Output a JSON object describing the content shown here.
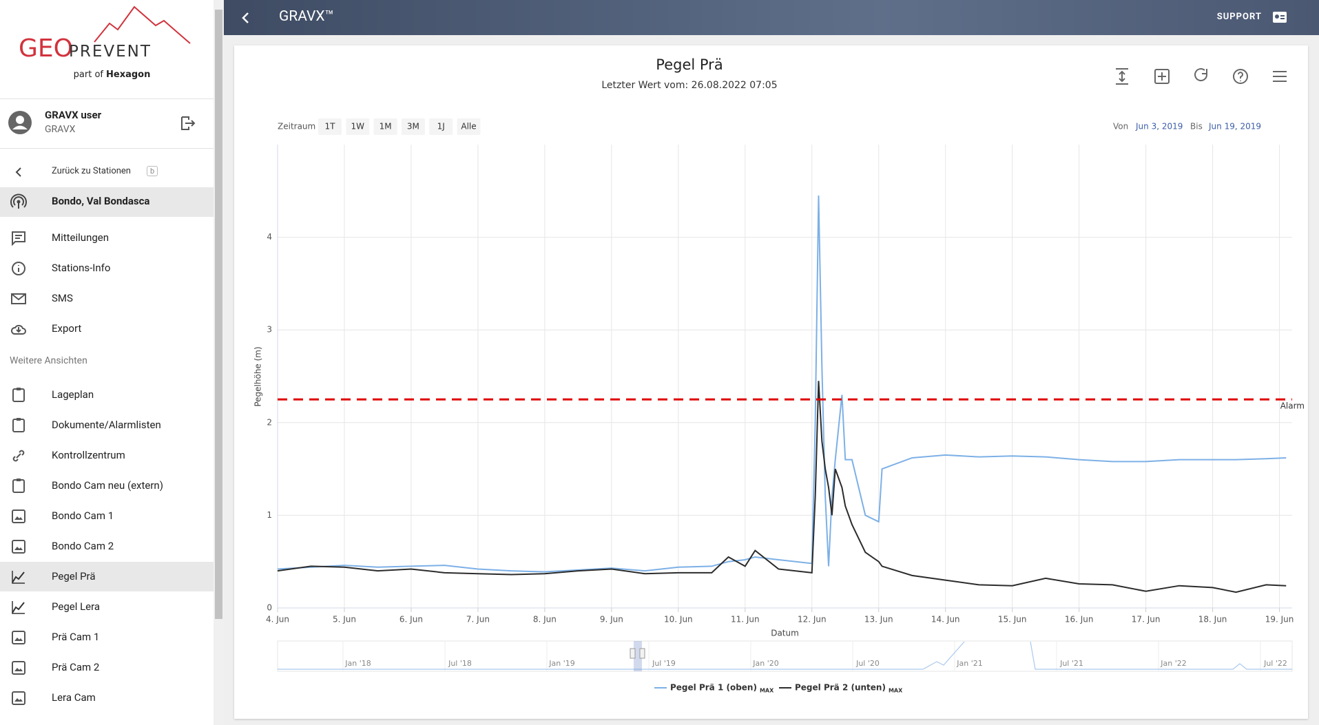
{
  "header": {
    "title": "GRAVX™",
    "support": "SUPPORT"
  },
  "sidebar": {
    "logo": {
      "geo": "GEO",
      "prevent": "PREVENT",
      "tagline_prefix": "part of",
      "tagline_brand": "Hexagon"
    },
    "user": {
      "name": "GRAVX user",
      "org": "GRAVX"
    },
    "back": {
      "label": "Zurück zu Stationen",
      "shortcut": "b"
    },
    "station": "Bondo, Val Bondasca",
    "menu": [
      "Mitteilungen",
      "Stations-Info",
      "SMS",
      "Export"
    ],
    "section": "Weitere Ansichten",
    "views": [
      "Lageplan",
      "Dokumente/Alarmlisten",
      "Kontrollzentrum",
      "Bondo Cam neu (extern)",
      "Bondo Cam 1",
      "Bondo Cam 2",
      "Pegel Prä",
      "Pegel Lera",
      "Prä Cam 1",
      "Prä Cam 2",
      "Lera Cam"
    ]
  },
  "chart_data": {
    "type": "line",
    "title": "Pegel Prä",
    "subtitle": "Letzter Wert vom: 26.08.2022 07:05",
    "range_label": "Zeitraum",
    "range_buttons": [
      "1T",
      "1W",
      "1M",
      "3M",
      "1J",
      "Alle"
    ],
    "from_label": "Von",
    "from": "Jun 3, 2019",
    "to_label": "Bis",
    "to": "Jun 19, 2019",
    "x_label": "Datum",
    "y_label": "Pegelhöhe (m)",
    "x": [
      4,
      4.5,
      5,
      5.5,
      6,
      6.5,
      7,
      7.5,
      8,
      8.5,
      9,
      9.5,
      10,
      10.5,
      10.75,
      11,
      11.15,
      11.5,
      12,
      12.05,
      12.1,
      12.15,
      12.2,
      12.25,
      12.3,
      12.35,
      12.45,
      12.5,
      12.6,
      12.8,
      13,
      13.05,
      13.5,
      14,
      14.5,
      15,
      15.5,
      16,
      16.5,
      17,
      17.5,
      18,
      18.35,
      18.8,
      19.1
    ],
    "series": [
      {
        "name": "Pegel Prä 1 (oben)",
        "suffix": "MAX",
        "color": "#7cb0e6",
        "values": [
          0.42,
          0.44,
          0.46,
          0.44,
          0.45,
          0.46,
          0.42,
          0.4,
          0.39,
          0.41,
          0.43,
          0.4,
          0.44,
          0.45,
          0.5,
          0.52,
          0.55,
          0.52,
          0.48,
          2.0,
          4.45,
          2.6,
          1.2,
          0.45,
          1.2,
          1.6,
          2.3,
          1.6,
          1.6,
          1.0,
          0.93,
          1.5,
          1.62,
          1.65,
          1.63,
          1.64,
          1.63,
          1.6,
          1.58,
          1.58,
          1.6,
          1.6,
          1.6,
          1.61,
          1.62
        ]
      },
      {
        "name": "Pegel Prä 2 (unten)",
        "suffix": "MAX",
        "color": "#2b2b2b",
        "values": [
          0.4,
          0.45,
          0.44,
          0.4,
          0.42,
          0.38,
          0.37,
          0.36,
          0.37,
          0.4,
          0.42,
          0.37,
          0.38,
          0.38,
          0.55,
          0.45,
          0.62,
          0.42,
          0.38,
          1.2,
          2.45,
          1.8,
          1.5,
          1.3,
          1.0,
          1.5,
          1.3,
          1.1,
          0.9,
          0.6,
          0.5,
          0.45,
          0.35,
          0.3,
          0.25,
          0.24,
          0.32,
          0.26,
          0.25,
          0.18,
          0.24,
          0.22,
          0.17,
          0.25,
          0.24
        ]
      }
    ],
    "xlim": [
      4,
      19.19
    ],
    "xticks": [
      {
        "value": 4,
        "label": "4. Jun"
      },
      {
        "value": 5,
        "label": "5. Jun"
      },
      {
        "value": 6,
        "label": "6. Jun"
      },
      {
        "value": 7,
        "label": "7. Jun"
      },
      {
        "value": 8,
        "label": "8. Jun"
      },
      {
        "value": 9,
        "label": "9. Jun"
      },
      {
        "value": 10,
        "label": "10. Jun"
      },
      {
        "value": 11,
        "label": "11. Jun"
      },
      {
        "value": 12,
        "label": "12. Jun"
      },
      {
        "value": 13,
        "label": "13. Jun"
      },
      {
        "value": 14,
        "label": "14. Jun"
      },
      {
        "value": 15,
        "label": "15. Jun"
      },
      {
        "value": 16,
        "label": "16. Jun"
      },
      {
        "value": 17,
        "label": "17. Jun"
      },
      {
        "value": 18,
        "label": "18. Jun"
      },
      {
        "value": 19,
        "label": "19. Jun"
      }
    ],
    "ylim": [
      0,
      5
    ],
    "yticks": [
      0,
      1,
      2,
      3,
      4
    ],
    "grid": true,
    "threshold": {
      "value": 2.25,
      "label": "Alarm",
      "color": "#e00000"
    },
    "navigator_labels": [
      "Jan '18",
      "Jul '18",
      "Jan '19",
      "Jul '19",
      "Jan '20",
      "Jul '20",
      "Jan '21",
      "Jul '21",
      "Jan '22",
      "Jul '22"
    ]
  }
}
